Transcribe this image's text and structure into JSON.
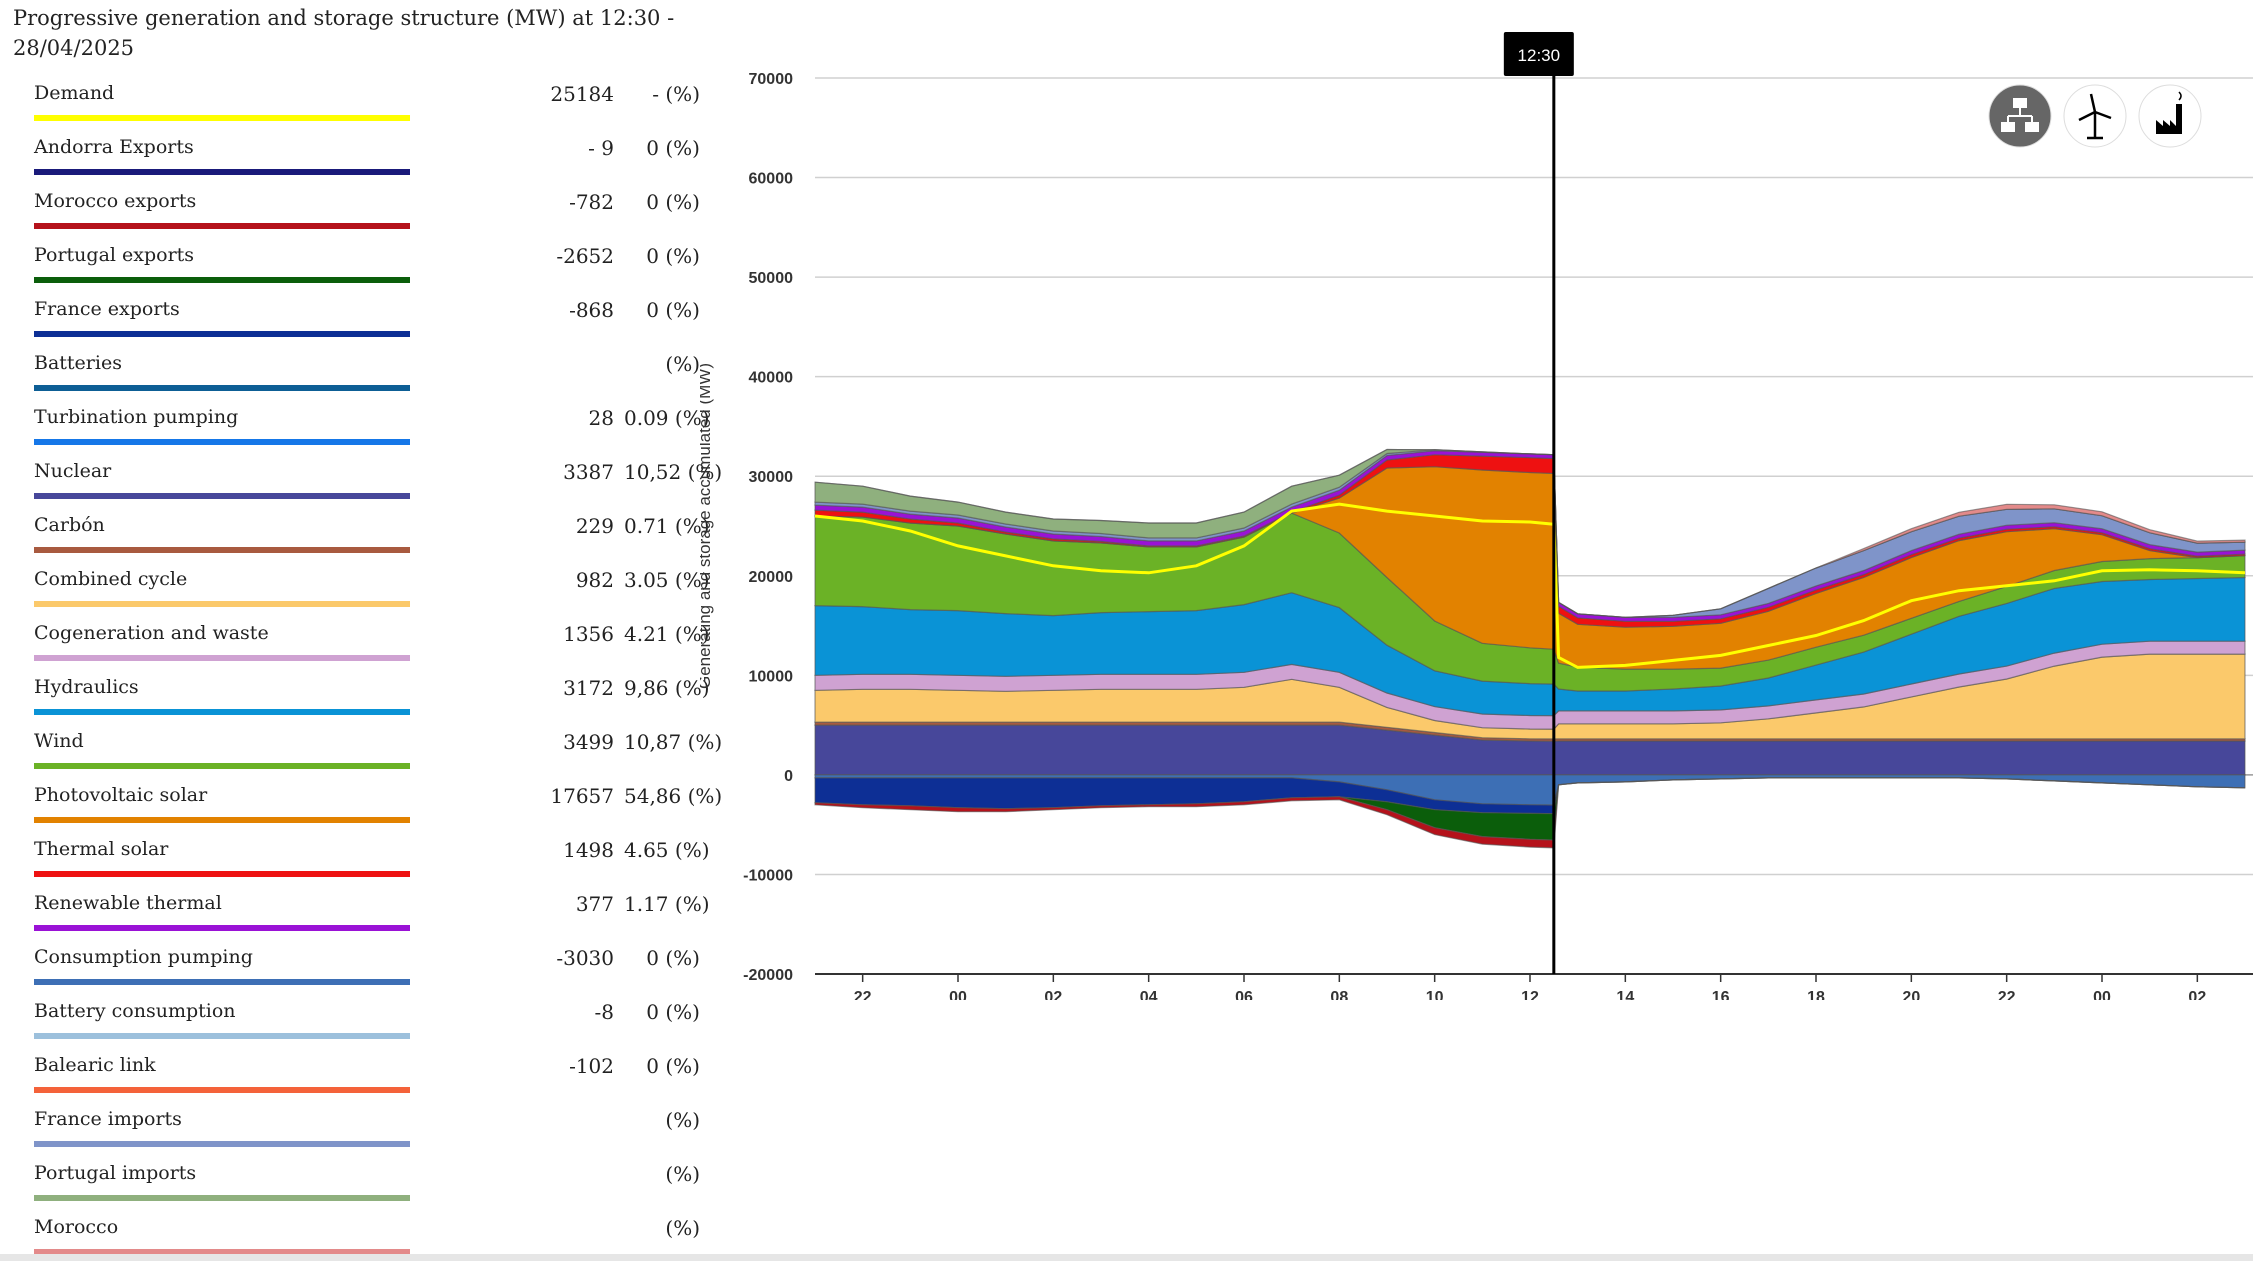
{
  "header": {
    "title": "Progressive generation and storage structure (MW) at 12:30 - 28/04/2025"
  },
  "legend": [
    {
      "name": "Demand",
      "value": "25184",
      "pct": "- (%)",
      "color": "#ffff00"
    },
    {
      "name": "Andorra Exports",
      "value": "- 9",
      "pct": "0 (%)",
      "color": "#1a1a7a"
    },
    {
      "name": "Morocco exports",
      "value": "-782",
      "pct": "0 (%)",
      "color": "#b5121b"
    },
    {
      "name": "Portugal exports",
      "value": "-2652",
      "pct": "0 (%)",
      "color": "#0b5e0b"
    },
    {
      "name": "France exports",
      "value": "-868",
      "pct": "0 (%)",
      "color": "#0d2f95"
    },
    {
      "name": "Batteries",
      "value": "",
      "pct": "(%)",
      "color": "#0d5e95"
    },
    {
      "name": "Turbination pumping",
      "value": "28",
      "pct": "0.09 (%)",
      "color": "#1577e8"
    },
    {
      "name": "Nuclear",
      "value": "3387",
      "pct": "10,52 (%)",
      "color": "#47479a"
    },
    {
      "name": "Carbón",
      "value": "229",
      "pct": "0.71 (%)",
      "color": "#a85a3f"
    },
    {
      "name": "Combined cycle",
      "value": "982",
      "pct": "3.05 (%)",
      "color": "#fbc96b"
    },
    {
      "name": "Cogeneration and waste",
      "value": "1356",
      "pct": "4.21 (%)",
      "color": "#cfa2d2"
    },
    {
      "name": "Hydraulics",
      "value": "3172",
      "pct": "9,86 (%)",
      "color": "#0a93d6"
    },
    {
      "name": "Wind",
      "value": "3499",
      "pct": "10,87 (%)",
      "color": "#6bb226"
    },
    {
      "name": "Photovoltaic solar",
      "value": "17657",
      "pct": "54,86 (%)",
      "color": "#e28200"
    },
    {
      "name": "Thermal solar",
      "value": "1498",
      "pct": "4.65 (%)",
      "color": "#ee1111"
    },
    {
      "name": "Renewable thermal",
      "value": "377",
      "pct": "1.17 (%)",
      "color": "#9a12d6"
    },
    {
      "name": "Consumption pumping",
      "value": "-3030",
      "pct": "0 (%)",
      "color": "#3d6fb5"
    },
    {
      "name": "Battery consumption",
      "value": "-8",
      "pct": "0 (%)",
      "color": "#9cc0dc"
    },
    {
      "name": "Balearic link",
      "value": "-102",
      "pct": "0 (%)",
      "color": "#f4623a"
    },
    {
      "name": "France imports",
      "value": "",
      "pct": "(%)",
      "color": "#7f94c9"
    },
    {
      "name": "Portugal imports",
      "value": "",
      "pct": "(%)",
      "color": "#8fb07e"
    },
    {
      "name": "Morocco",
      "value": "",
      "pct": "(%)",
      "color": "#e38a8a"
    }
  ],
  "icons": [
    {
      "name": "hierarchy-icon",
      "active": true
    },
    {
      "name": "wind-turbine-icon",
      "active": false
    },
    {
      "name": "factory-icon",
      "active": false
    }
  ],
  "chart_data": {
    "type": "area",
    "stacked": true,
    "title": "Progressive generation and storage structure (MW)",
    "ylabel": "Generating and storage accumulated (MW)",
    "xlabel": "",
    "ylim": [
      -20000,
      70000
    ],
    "yticks": [
      -20000,
      -10000,
      0,
      10000,
      20000,
      30000,
      40000,
      50000,
      60000,
      70000
    ],
    "ytick_labels": [
      "-20000",
      "-10000",
      "0",
      "10000",
      "20000",
      "30000",
      "40000",
      "50000",
      "60000",
      "70000"
    ],
    "x_range": [
      21,
      51
    ],
    "xticks": [
      22,
      24,
      26,
      28,
      30,
      32,
      34,
      36,
      38,
      40,
      42,
      44,
      46,
      48,
      50
    ],
    "xtick_labels": [
      "22",
      "00",
      "02",
      "04",
      "06",
      "08",
      "10",
      "12",
      "14",
      "16",
      "18",
      "20",
      "22",
      "00",
      "02"
    ],
    "grid": true,
    "cursor": {
      "x": 36.5,
      "label": "12:30"
    },
    "x_hours": [
      21,
      22,
      23,
      24,
      25,
      26,
      27,
      28,
      29,
      30,
      31,
      32,
      33,
      34,
      35,
      36,
      36.5,
      36.6,
      37,
      38,
      39,
      40,
      41,
      42,
      43,
      44,
      45,
      46,
      47,
      48,
      49,
      50,
      51
    ],
    "positive_series": [
      {
        "name": "Nuclear",
        "color": "#47479a",
        "values": [
          5000,
          5000,
          5000,
          5000,
          5000,
          5000,
          5000,
          5000,
          5000,
          5000,
          5000,
          5000,
          4500,
          4000,
          3500,
          3400,
          3387,
          3400,
          3400,
          3400,
          3400,
          3400,
          3400,
          3400,
          3400,
          3400,
          3400,
          3400,
          3400,
          3400,
          3400,
          3400,
          3400
        ]
      },
      {
        "name": "Carbón",
        "color": "#a85a3f",
        "values": [
          300,
          300,
          300,
          300,
          300,
          300,
          300,
          300,
          300,
          300,
          300,
          300,
          280,
          260,
          240,
          230,
          229,
          230,
          230,
          230,
          230,
          230,
          230,
          230,
          230,
          230,
          230,
          230,
          230,
          230,
          230,
          230,
          230
        ]
      },
      {
        "name": "Combined cycle",
        "color": "#fbc96b",
        "values": [
          3200,
          3300,
          3300,
          3200,
          3100,
          3200,
          3300,
          3300,
          3300,
          3500,
          4300,
          3500,
          2000,
          1200,
          1000,
          980,
          982,
          1500,
          1500,
          1500,
          1500,
          1600,
          2000,
          2600,
          3200,
          4200,
          5200,
          6000,
          7300,
          8200,
          8500,
          8500,
          8500
        ]
      },
      {
        "name": "Cogeneration and waste",
        "color": "#cfa2d2",
        "values": [
          1500,
          1500,
          1500,
          1500,
          1500,
          1500,
          1500,
          1500,
          1500,
          1500,
          1500,
          1500,
          1450,
          1400,
          1380,
          1360,
          1356,
          1300,
          1300,
          1300,
          1300,
          1300,
          1300,
          1300,
          1300,
          1300,
          1300,
          1300,
          1300,
          1300,
          1300,
          1300,
          1300
        ]
      },
      {
        "name": "Hydraulics",
        "color": "#0a93d6",
        "values": [
          7000,
          6800,
          6500,
          6500,
          6300,
          6000,
          6200,
          6300,
          6400,
          6800,
          7200,
          6500,
          4800,
          3600,
          3300,
          3200,
          3172,
          2200,
          2000,
          2000,
          2200,
          2400,
          2800,
          3500,
          4200,
          5000,
          5800,
          6300,
          6500,
          6300,
          6200,
          6300,
          6400
        ]
      },
      {
        "name": "Wind",
        "color": "#6bb226",
        "values": [
          9000,
          9000,
          8700,
          8500,
          8000,
          7500,
          7000,
          6500,
          6400,
          6800,
          8000,
          7500,
          6800,
          5000,
          3800,
          3600,
          3499,
          2600,
          2400,
          2200,
          2000,
          1800,
          1800,
          1800,
          1700,
          1600,
          1500,
          1700,
          1800,
          2000,
          2100,
          2100,
          2200
        ]
      },
      {
        "name": "Photovoltaic solar",
        "color": "#e28200",
        "values": [
          0,
          0,
          0,
          0,
          0,
          0,
          0,
          0,
          0,
          0,
          0,
          3500,
          11000,
          15500,
          17400,
          17600,
          17657,
          5000,
          4300,
          4200,
          4300,
          4500,
          4900,
          5400,
          5800,
          6100,
          6100,
          5500,
          4200,
          2700,
          800,
          0,
          0
        ]
      },
      {
        "name": "Thermal solar",
        "color": "#ee1111",
        "values": [
          600,
          500,
          400,
          300,
          200,
          200,
          150,
          100,
          100,
          100,
          100,
          300,
          800,
          1200,
          1400,
          1500,
          1498,
          700,
          650,
          600,
          500,
          450,
          400,
          350,
          300,
          300,
          250,
          250,
          200,
          200,
          200,
          150,
          150
        ]
      },
      {
        "name": "Renewable thermal",
        "color": "#9a12d6",
        "values": [
          500,
          500,
          500,
          500,
          500,
          500,
          500,
          500,
          500,
          500,
          500,
          500,
          450,
          400,
          380,
          377,
          377,
          400,
          400,
          400,
          400,
          400,
          400,
          400,
          400,
          400,
          400,
          400,
          400,
          400,
          400,
          400,
          400
        ]
      },
      {
        "name": "France imports",
        "color": "#7f94c9",
        "values": [
          300,
          300,
          300,
          300,
          300,
          300,
          300,
          300,
          300,
          300,
          300,
          300,
          200,
          100,
          50,
          0,
          0,
          0,
          0,
          0,
          200,
          600,
          1500,
          1800,
          2000,
          1900,
          1800,
          1600,
          1400,
          1300,
          1200,
          900,
          800
        ]
      },
      {
        "name": "Portugal imports",
        "color": "#8fb07e",
        "values": [
          2000,
          1800,
          1500,
          1300,
          1200,
          1200,
          1300,
          1500,
          1500,
          1600,
          1800,
          1200,
          400,
          0,
          0,
          0,
          0,
          0,
          0,
          0,
          0,
          0,
          0,
          0,
          0,
          0,
          0,
          0,
          0,
          0,
          0,
          0,
          0
        ]
      },
      {
        "name": "Morocco",
        "color": "#e38a8a",
        "values": [
          0,
          0,
          0,
          0,
          0,
          0,
          0,
          0,
          0,
          0,
          0,
          0,
          0,
          0,
          0,
          0,
          0,
          0,
          0,
          0,
          0,
          0,
          0,
          0,
          200,
          300,
          400,
          500,
          400,
          400,
          300,
          200,
          200
        ]
      }
    ],
    "negative_series": [
      {
        "name": "Consumption pumping",
        "color": "#3d6fb5",
        "values": [
          -300,
          -300,
          -300,
          -300,
          -300,
          -300,
          -300,
          -300,
          -300,
          -300,
          -300,
          -700,
          -1500,
          -2500,
          -2900,
          -3000,
          -3030,
          -1000,
          -800,
          -700,
          -500,
          -400,
          -300,
          -300,
          -300,
          -300,
          -300,
          -400,
          -600,
          -800,
          -1000,
          -1200,
          -1300
        ]
      },
      {
        "name": "France exports",
        "color": "#0d2f95",
        "values": [
          -2500,
          -2700,
          -2800,
          -3000,
          -3100,
          -3000,
          -2800,
          -2700,
          -2600,
          -2400,
          -2000,
          -1500,
          -1200,
          -1000,
          -900,
          -870,
          -868,
          0,
          0,
          0,
          0,
          0,
          0,
          0,
          0,
          0,
          0,
          0,
          0,
          0,
          0,
          0,
          0
        ]
      },
      {
        "name": "Portugal exports",
        "color": "#0b5e0b",
        "values": [
          0,
          0,
          0,
          0,
          0,
          0,
          0,
          0,
          0,
          0,
          0,
          0,
          -800,
          -1800,
          -2400,
          -2600,
          -2652,
          0,
          0,
          0,
          0,
          0,
          0,
          0,
          0,
          0,
          0,
          0,
          0,
          0,
          0,
          0,
          0
        ]
      },
      {
        "name": "Morocco exports",
        "color": "#b5121b",
        "values": [
          -200,
          -300,
          -400,
          -400,
          -300,
          -200,
          -200,
          -200,
          -300,
          -300,
          -300,
          -300,
          -500,
          -700,
          -750,
          -780,
          -782,
          0,
          0,
          0,
          0,
          0,
          0,
          0,
          0,
          0,
          0,
          0,
          0,
          0,
          0,
          0,
          0
        ]
      }
    ],
    "demand": {
      "name": "Demand",
      "color": "#ffff00",
      "values": [
        26000,
        25500,
        24500,
        23000,
        22000,
        21000,
        20500,
        20300,
        21000,
        23000,
        26500,
        27200,
        26500,
        26000,
        25500,
        25400,
        25184,
        11800,
        10800,
        11000,
        11500,
        12000,
        13000,
        14000,
        15500,
        17500,
        18500,
        19000,
        19500,
        20500,
        20600,
        20500,
        20300
      ]
    }
  }
}
